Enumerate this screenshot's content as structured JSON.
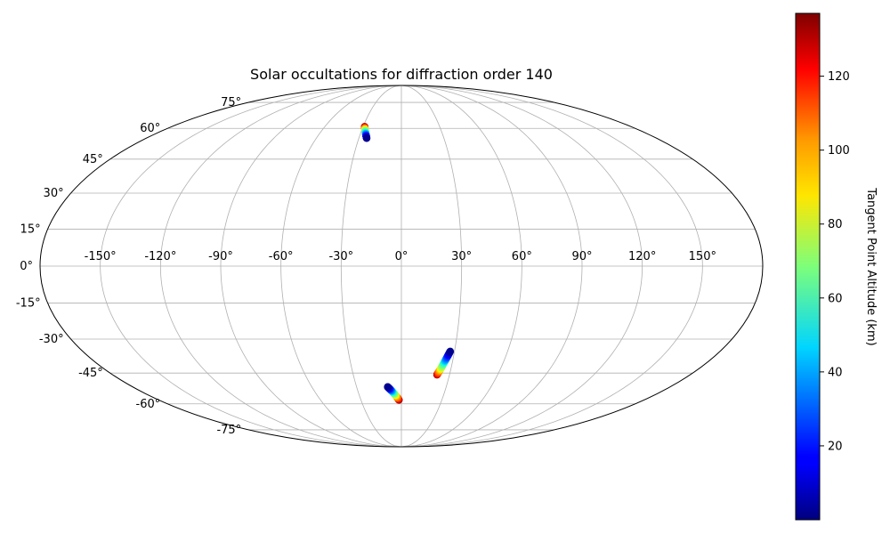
{
  "chart_data": {
    "type": "scatter",
    "projection": "mollweide",
    "title": "Solar occultations for diffraction order 140",
    "xlabel": "",
    "ylabel": "",
    "grid": true,
    "longitude_ticks": [
      -150,
      -120,
      -90,
      -60,
      -30,
      0,
      30,
      60,
      90,
      120,
      150
    ],
    "longitude_tick_labels": [
      "-150°",
      "-120°",
      "-90°",
      "-60°",
      "-30°",
      "0°",
      "30°",
      "60°",
      "90°",
      "120°",
      "150°"
    ],
    "latitude_ticks": [
      -75,
      -60,
      -45,
      -30,
      -15,
      0,
      15,
      30,
      45,
      60,
      75
    ],
    "latitude_tick_labels": [
      "-75°",
      "-60°",
      "-45°",
      "-30°",
      "-15°",
      "0°",
      "15°",
      "30°",
      "45°",
      "60°",
      "75°"
    ],
    "colorbar": {
      "label": "Tangent Point Altitude (km)",
      "colormap": "jet",
      "range": [
        0,
        137
      ],
      "ticks": [
        20,
        40,
        60,
        80,
        100,
        120
      ],
      "tick_labels": [
        "20",
        "40",
        "60",
        "80",
        "100",
        "120"
      ]
    },
    "series": [
      {
        "lon": [
          -24.5,
          -25.8,
          -27.3,
          -28.8
        ],
        "lat": [
          55.0,
          56.8,
          58.9,
          60.9
        ],
        "alt": [
          2,
          35,
          80,
          135
        ]
      },
      {
        "lon": [
          -9.2,
          -6.5,
          -4.0,
          -1.8
        ],
        "lat": [
          -51.5,
          -53.6,
          -55.8,
          -58.0
        ],
        "alt": [
          2,
          45,
          95,
          135
        ]
      },
      {
        "lon": [
          27.6,
          25.8,
          24.0,
          22.2
        ],
        "lat": [
          -35.3,
          -39.0,
          -42.7,
          -45.8
        ],
        "alt": [
          2,
          40,
          85,
          132
        ]
      }
    ]
  }
}
